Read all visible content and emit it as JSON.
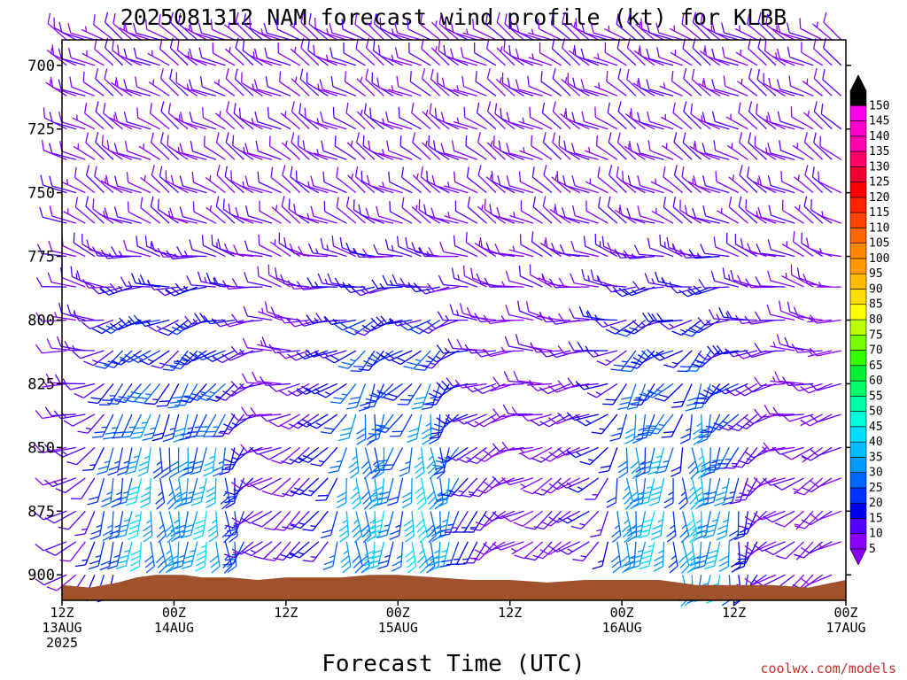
{
  "chart_data": {
    "type": "wind-barb-time-height",
    "title": "2025081312 NAM forecast wind profile (kt) for KLBB",
    "xlabel": "Forecast Time (UTC)",
    "ylabel": "",
    "y_axis": {
      "ticks": [
        700,
        725,
        750,
        775,
        800,
        825,
        850,
        875,
        900
      ],
      "range": [
        690,
        910
      ],
      "inverted": true,
      "unit": "hPa"
    },
    "x_axis": {
      "range_hours": [
        0,
        84
      ],
      "ticks": [
        {
          "hour": 0,
          "label": [
            "12Z",
            "13AUG",
            "2025"
          ]
        },
        {
          "hour": 12,
          "label": [
            "00Z",
            "14AUG"
          ]
        },
        {
          "hour": 24,
          "label": [
            "12Z"
          ]
        },
        {
          "hour": 36,
          "label": [
            "00Z",
            "15AUG"
          ]
        },
        {
          "hour": 48,
          "label": [
            "12Z"
          ]
        },
        {
          "hour": 60,
          "label": [
            "00Z",
            "16AUG"
          ]
        },
        {
          "hour": 72,
          "label": [
            "12Z"
          ]
        },
        {
          "hour": 84,
          "label": [
            "00Z",
            "17AUG"
          ]
        }
      ]
    },
    "wind_field_approx": {
      "time_step_hours": 1,
      "pressure_levels": [
        690,
        700,
        712,
        725,
        737,
        750,
        762,
        775,
        787,
        800,
        812,
        825,
        837,
        850,
        862,
        875,
        887,
        900
      ],
      "note_units": "speed in kt, direction in degrees from",
      "low_level_jet_peaks_hours": [
        9,
        15,
        33,
        39,
        63,
        69
      ],
      "low_level_jet_peak_speed_kt": 40,
      "low_level_jet_direction_deg": 180,
      "upper_level_speed_kt": 10,
      "upper_level_direction_deg": 300
    },
    "terrain": {
      "color": "#a0522d",
      "surface_pressure_hpa": [
        {
          "h": 0,
          "p": 904
        },
        {
          "h": 3,
          "p": 905
        },
        {
          "h": 6,
          "p": 903
        },
        {
          "h": 8,
          "p": 901
        },
        {
          "h": 10,
          "p": 900
        },
        {
          "h": 13,
          "p": 900
        },
        {
          "h": 15,
          "p": 901
        },
        {
          "h": 18,
          "p": 901
        },
        {
          "h": 21,
          "p": 902
        },
        {
          "h": 24,
          "p": 901
        },
        {
          "h": 27,
          "p": 901
        },
        {
          "h": 30,
          "p": 901
        },
        {
          "h": 33,
          "p": 900
        },
        {
          "h": 36,
          "p": 900
        },
        {
          "h": 40,
          "p": 901
        },
        {
          "h": 44,
          "p": 902
        },
        {
          "h": 48,
          "p": 902
        },
        {
          "h": 52,
          "p": 903
        },
        {
          "h": 56,
          "p": 902
        },
        {
          "h": 60,
          "p": 902
        },
        {
          "h": 64,
          "p": 902
        },
        {
          "h": 68,
          "p": 904
        },
        {
          "h": 72,
          "p": 904
        },
        {
          "h": 76,
          "p": 904
        },
        {
          "h": 80,
          "p": 905
        },
        {
          "h": 84,
          "p": 902
        }
      ]
    },
    "colorbar": {
      "levels": [
        5,
        10,
        15,
        20,
        25,
        30,
        35,
        40,
        45,
        50,
        55,
        60,
        65,
        70,
        75,
        80,
        85,
        90,
        95,
        100,
        105,
        110,
        115,
        120,
        125,
        130,
        135,
        140,
        145,
        150
      ],
      "colors": [
        "#8a00ff",
        "#5500ff",
        "#0000ee",
        "#0033ff",
        "#0066ff",
        "#0099ff",
        "#00bbff",
        "#00ddff",
        "#00ffdd",
        "#00ffaa",
        "#00ff66",
        "#00ee33",
        "#33ff00",
        "#77ff00",
        "#bbff00",
        "#ffff00",
        "#ffdd00",
        "#ffbb00",
        "#ff9900",
        "#ff8800",
        "#ff6600",
        "#ff4400",
        "#ff2200",
        "#ff0000",
        "#ee0033",
        "#ff0066",
        "#ff00aa",
        "#ff00cc",
        "#ff00ee",
        "#000000"
      ],
      "top_triangle_color": "#000000",
      "bottom_triangle_color": "#8a00ff"
    },
    "credit": "coolwx.com/models"
  }
}
